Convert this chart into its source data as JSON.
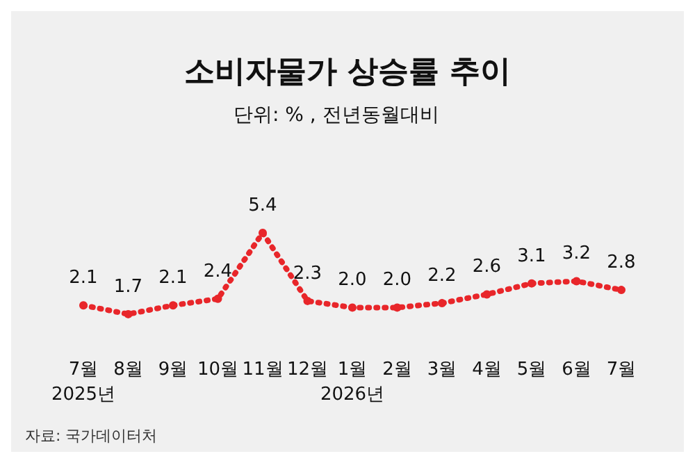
{
  "chart_data": {
    "type": "line",
    "title": "소비자물가 상승률 추이",
    "subtitle": "단위: % , 전년동월대비",
    "categories": [
      "7월\n2025년",
      "8월",
      "9월",
      "10월",
      "11월",
      "12월",
      "1월\n2026년",
      "2월",
      "3월",
      "4월",
      "5월",
      "6월",
      "7월"
    ],
    "series": [
      {
        "color": "#e8262a",
        "values": [
          2.1,
          1.7,
          2.1,
          2.4,
          5.4,
          2.3,
          2.0,
          2.0,
          2.2,
          2.6,
          3.1,
          3.2,
          2.8
        ],
        "value_labels": [
          "2.1",
          "1.7",
          "2.1",
          "2.4",
          "5.4",
          "2.3",
          "2.0",
          "2.0",
          "2.2",
          "2.6",
          "3.1",
          "3.2",
          "2.8"
        ]
      }
    ],
    "marker": "circle",
    "line_style": "dotted",
    "grid": false,
    "annotations": [
      "자료: 국가데이터처"
    ]
  }
}
